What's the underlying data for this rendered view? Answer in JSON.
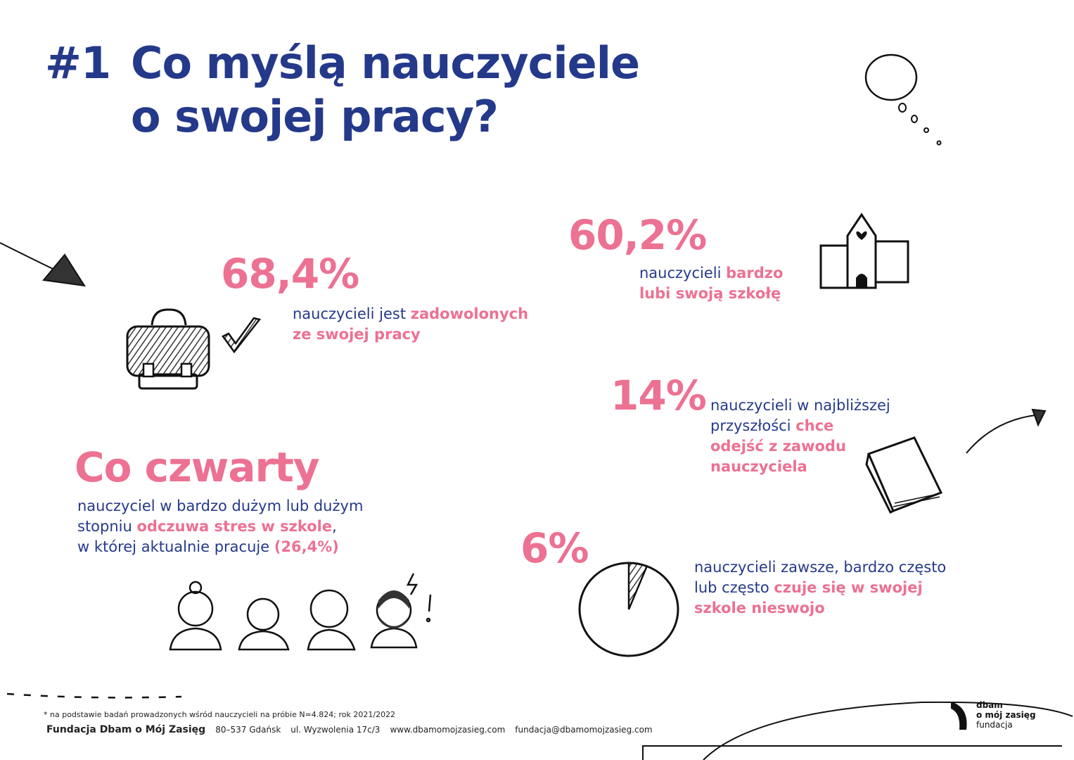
{
  "header": {
    "number": "#1",
    "title_line1": "Co myślą nauczyciele",
    "title_line2": "o swojej pracy?"
  },
  "stats": [
    {
      "value": "68,4%",
      "text": [
        {
          "t": "nauczycieli jest ",
          "hl": false
        },
        {
          "t": "zadowolonych",
          "hl": true
        },
        {
          "t": "ze swojej pracy",
          "hl": true,
          "br": true
        }
      ]
    },
    {
      "value": "60,2%",
      "text": [
        {
          "t": "nauczycieli ",
          "hl": false
        },
        {
          "t": "bardzo",
          "hl": true
        },
        {
          "t": "lubi swoją szkołę",
          "hl": true
        }
      ]
    },
    {
      "value": "14%",
      "text": [
        {
          "t": "nauczycieli w najbliższej",
          "hl": false
        },
        {
          "t": "przyszłości ",
          "hl": false
        },
        {
          "t": "chce",
          "hl": true
        },
        {
          "t": "odejść z zawodu",
          "hl": true
        },
        {
          "t": "nauczyciela",
          "hl": true
        }
      ]
    },
    {
      "value": "Co czwarty",
      "text": [
        {
          "t": "nauczyciel w bardzo dużym lub dużym",
          "hl": false
        },
        {
          "t": "stopniu ",
          "hl": false
        },
        {
          "t": "odczuwa stres w szkole",
          "hl": true
        },
        {
          "t": ",",
          "hl": false
        },
        {
          "t": "w której aktualnie pracuje ",
          "hl": false
        },
        {
          "t": "(26,4%)",
          "hl": true
        }
      ]
    },
    {
      "value": "6%",
      "text": [
        {
          "t": "nauczycieli zawsze, bardzo często",
          "hl": false
        },
        {
          "t": "lub często ",
          "hl": false
        },
        {
          "t": "czuje się w swojej",
          "hl": true
        },
        {
          "t": "szkole nieswojo",
          "hl": true
        }
      ]
    }
  ],
  "pie": {
    "value_percent": 6
  },
  "footer": {
    "note": "* na podstawie badań prowadzonych wśród nauczycieli na próbie N=4.824; rok 2021/2022",
    "org": "Fundacja Dbam o Mój Zasięg",
    "city": "80–537 Gdańsk",
    "street": "ul. Wyzwolenia 17c/3",
    "website": "www.dbamomojzasieg.com",
    "email": "fundacja@dbamomojzasieg.com"
  },
  "logo": {
    "line1": "dbam",
    "line2": "o mój zasięg",
    "line3": "fundacja"
  },
  "colors": {
    "navy": "#25398a",
    "pink": "#ec7192"
  },
  "icons": [
    "thought-bubble-icon",
    "arrow-icon",
    "briefcase-icon",
    "checkmark-icon",
    "school-icon",
    "book-icon",
    "teachers-icon",
    "pie-icon"
  ]
}
